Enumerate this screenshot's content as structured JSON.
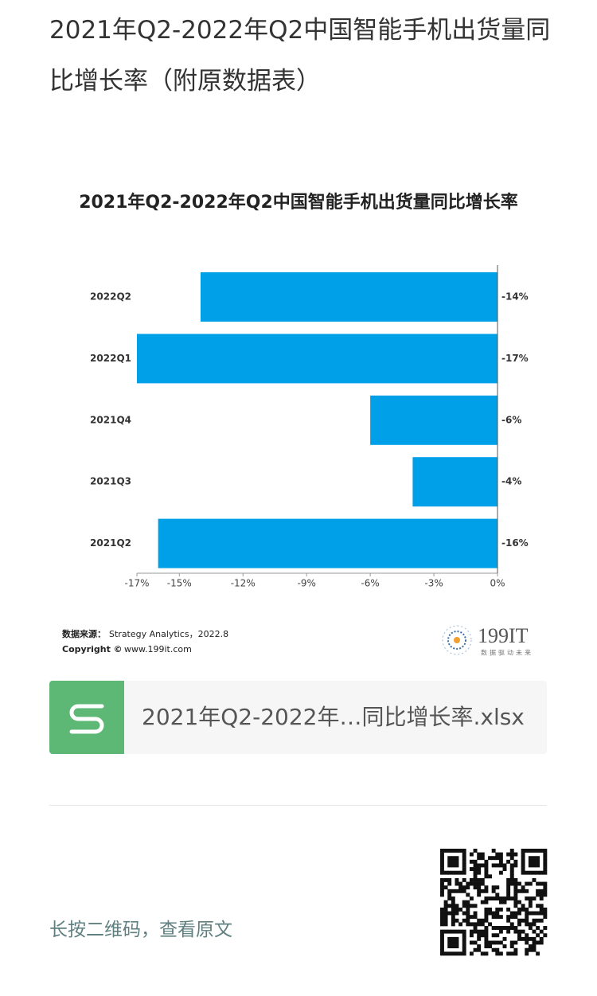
{
  "header": {
    "title": "2021年Q2-2022年Q2中国智能手机出货量同比增长率（附原数据表）"
  },
  "chart_data": {
    "type": "bar",
    "orientation": "horizontal",
    "title": "2021年Q2-2022年Q2中国智能手机出货量同比增长率",
    "categories": [
      "2022Q2",
      "2022Q1",
      "2021Q4",
      "2021Q3",
      "2021Q2"
    ],
    "values": [
      -14,
      -17,
      -6,
      -4,
      -16
    ],
    "value_labels": [
      "-14%",
      "-17%",
      "-6%",
      "-4%",
      "-16%"
    ],
    "color": "#00a0e9",
    "xlim": [
      -17,
      0
    ],
    "xticks": [
      {
        "value": -17,
        "label": "-17%"
      },
      {
        "value": -15,
        "label": "-15%"
      },
      {
        "value": -12,
        "label": "-12%"
      },
      {
        "value": -9,
        "label": "-9%"
      },
      {
        "value": -6,
        "label": "-6%"
      },
      {
        "value": -3,
        "label": "-3%"
      },
      {
        "value": 0,
        "label": "0%"
      }
    ]
  },
  "source": {
    "label": "数据来源：",
    "text": "Strategy Analytics，2022.8",
    "copyright_label": "Copyright ©",
    "copyright": "www.199it.com"
  },
  "logo": {
    "name": "199IT",
    "slogan": "数据驱动未来"
  },
  "attachment": {
    "filename": "2021年Q2-2022年…同比增长率.xlsx"
  },
  "footer": {
    "text": "长按二维码，查看原文"
  }
}
